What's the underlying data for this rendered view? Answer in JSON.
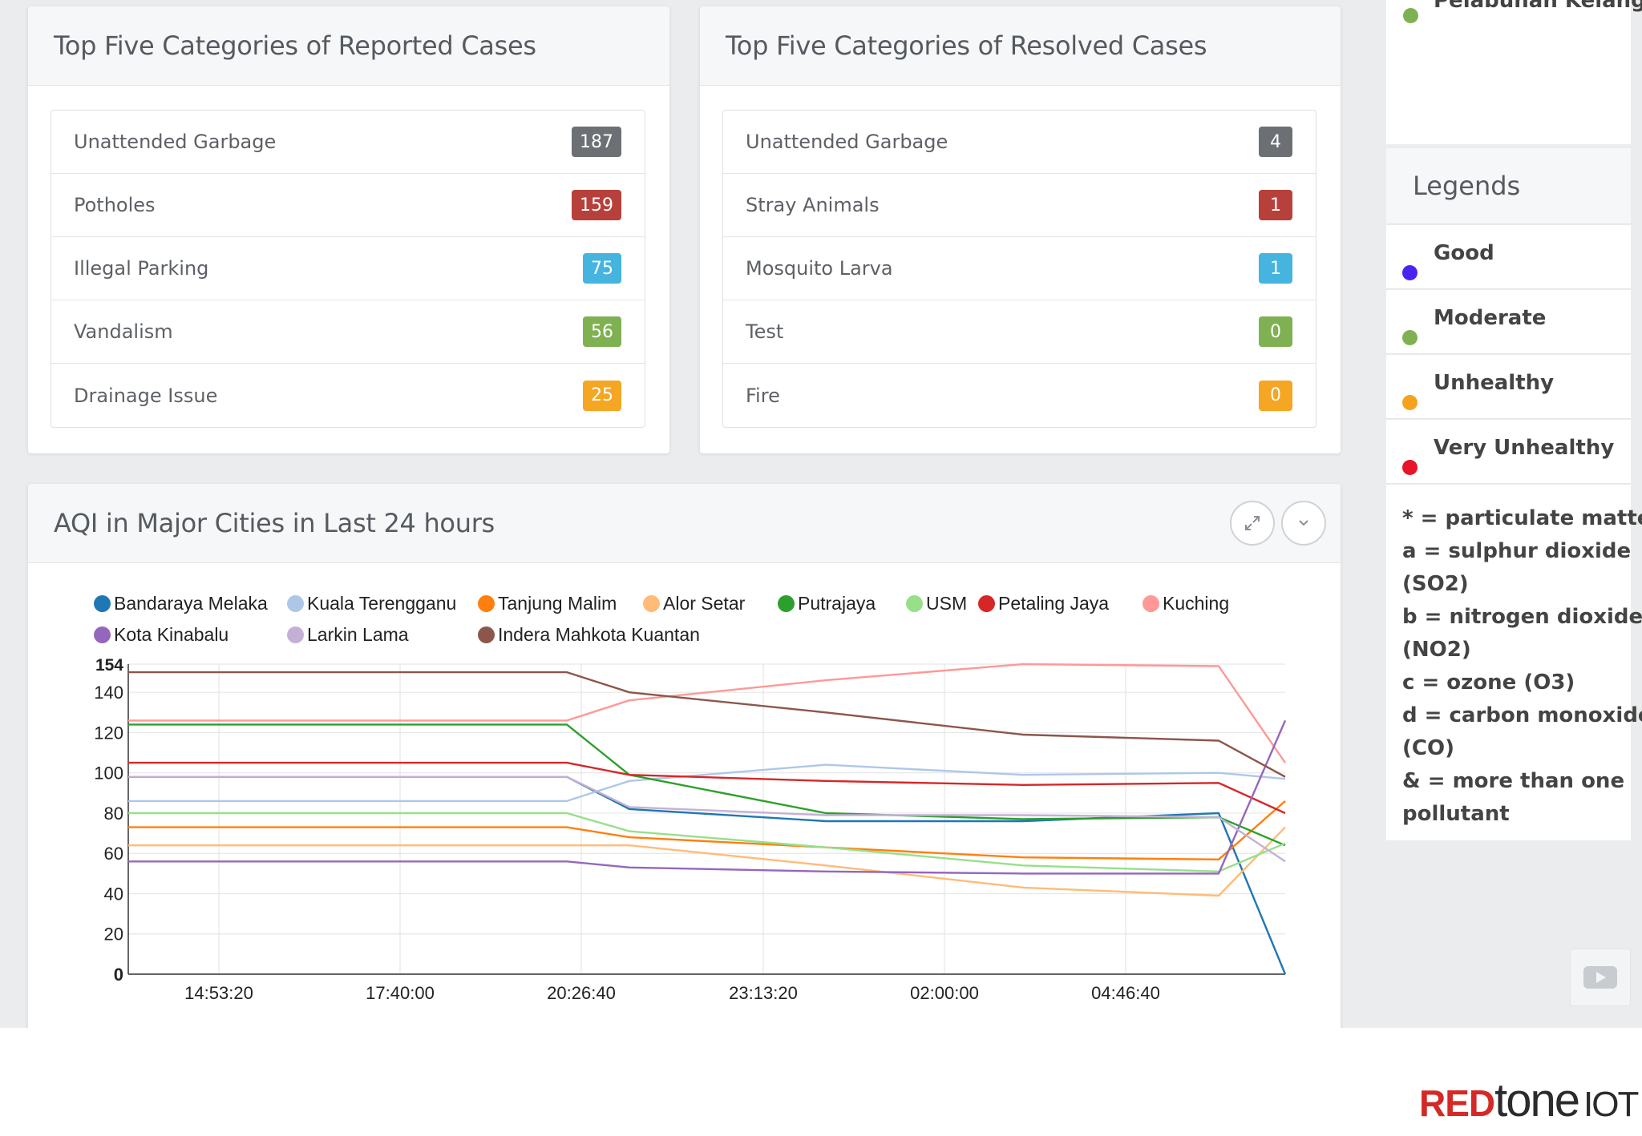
{
  "reported": {
    "title": "Top Five Categories of Reported Cases",
    "items": [
      {
        "label": "Unattended Garbage",
        "count": "187",
        "color": "#6c6f73"
      },
      {
        "label": "Potholes",
        "count": "159",
        "color": "#b8403b"
      },
      {
        "label": "Illegal Parking",
        "count": "75",
        "color": "#45b4de"
      },
      {
        "label": "Vandalism",
        "count": "56",
        "color": "#7fb153"
      },
      {
        "label": "Drainage Issue",
        "count": "25",
        "color": "#f5a623"
      }
    ]
  },
  "resolved": {
    "title": "Top Five Categories of Resolved Cases",
    "items": [
      {
        "label": "Unattended Garbage",
        "count": "4",
        "color": "#6c6f73"
      },
      {
        "label": "Stray Animals",
        "count": "1",
        "color": "#b8403b"
      },
      {
        "label": "Mosquito Larva",
        "count": "1",
        "color": "#45b4de"
      },
      {
        "label": "Test",
        "count": "0",
        "color": "#7fb153"
      },
      {
        "label": "Fire",
        "count": "0",
        "color": "#f5a623"
      }
    ]
  },
  "aqi": {
    "title": "AQI in Major Cities in Last 24 hours",
    "expand_icon": "expand-icon",
    "collapse_icon": "chevron-down-icon"
  },
  "chart_data": {
    "type": "line",
    "title": "",
    "xlabel": "",
    "ylabel": "",
    "ylim": [
      0,
      154
    ],
    "yticks": [
      "154",
      "140",
      "120",
      "100",
      "80",
      "60",
      "40",
      "20",
      "0"
    ],
    "xticks": [
      "14:53:20",
      "17:40:00",
      "20:26:40",
      "23:13:20",
      "02:00:00",
      "04:46:40"
    ],
    "x": [
      0,
      1,
      2,
      3,
      4,
      5,
      6,
      7
    ],
    "grid": true,
    "legend": "top",
    "series": [
      {
        "name": "Bandaraya Melaka",
        "color": "#1f77b4",
        "values": [
          98,
          98,
          98,
          82,
          76,
          76,
          80,
          0
        ]
      },
      {
        "name": "Kuala Terengganu",
        "color": "#aec7e8",
        "values": [
          86,
          86,
          86,
          96,
          104,
          99,
          100,
          97
        ]
      },
      {
        "name": "Tanjung Malim",
        "color": "#ff7f0e",
        "values": [
          73,
          73,
          73,
          68,
          63,
          58,
          57,
          86
        ]
      },
      {
        "name": "Alor Setar",
        "color": "#ffbb78",
        "values": [
          64,
          64,
          64,
          64,
          54,
          43,
          39,
          73
        ]
      },
      {
        "name": "Putrajaya",
        "color": "#2ca02c",
        "values": [
          124,
          124,
          124,
          99,
          80,
          77,
          78,
          64
        ]
      },
      {
        "name": "USM",
        "color": "#98df8a",
        "values": [
          80,
          80,
          80,
          71,
          63,
          54,
          51,
          65
        ]
      },
      {
        "name": "Petaling Jaya",
        "color": "#d62728",
        "values": [
          105,
          105,
          105,
          99,
          96,
          94,
          95,
          80
        ]
      },
      {
        "name": "Kuching",
        "color": "#ff9896",
        "values": [
          126,
          126,
          126,
          136,
          146,
          154,
          153,
          105
        ]
      },
      {
        "name": "Kota Kinabalu",
        "color": "#9467bd",
        "values": [
          56,
          56,
          56,
          53,
          51,
          50,
          50,
          126
        ]
      },
      {
        "name": "Larkin Lama",
        "color": "#c5b0d5",
        "values": [
          98,
          98,
          98,
          83,
          79,
          79,
          78,
          56
        ]
      },
      {
        "name": "Indera Mahkota Kuantan",
        "color": "#8c564b",
        "values": [
          150,
          150,
          150,
          140,
          130,
          119,
          116,
          98
        ]
      }
    ]
  },
  "right": {
    "partial_item": "Pelabuhan Kelang",
    "legends_title": "Legends",
    "legend_items": [
      {
        "label": "Good",
        "color": "#4a23f0"
      },
      {
        "label": "Moderate",
        "color": "#7fb153"
      },
      {
        "label": "Unhealthy",
        "color": "#f5a31f"
      },
      {
        "label": "Very Unhealthy",
        "color": "#e8142a"
      }
    ],
    "notes": [
      "* = particulate matter",
      "a = sulphur dioxide",
      "(SO2)",
      "b = nitrogen dioxide",
      "(NO2)",
      "c = ozone (O3)",
      "d = carbon monoxide",
      "(CO)",
      "& = more than one",
      "pollutant"
    ]
  },
  "brand": {
    "red": "RED",
    "dark": "tone",
    "suffix": "IOT"
  }
}
